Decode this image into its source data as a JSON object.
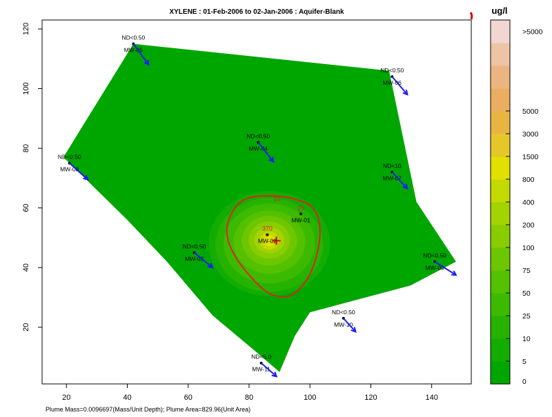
{
  "chart_data": {
    "type": "heatmap",
    "title": "XYLENE  : 01-Feb-2006 to 02-Jan-2006 : Aquifer-Blank",
    "x_ticks": [
      "20",
      "40",
      "60",
      "80",
      "100",
      "120",
      "140"
    ],
    "y_ticks": [
      "20",
      "40",
      "60",
      "80",
      "100",
      "120"
    ],
    "xlim": [
      12,
      153
    ],
    "ylim": [
      1,
      123
    ],
    "plume_boundary": [
      [
        42,
        115
      ],
      [
        126,
        106
      ],
      [
        135,
        62
      ],
      [
        148,
        42
      ],
      [
        133,
        34
      ],
      [
        100,
        25
      ],
      [
        95,
        17
      ],
      [
        90,
        5
      ],
      [
        82,
        12
      ],
      [
        68,
        24
      ],
      [
        53,
        42
      ],
      [
        40,
        56
      ],
      [
        19,
        77
      ]
    ],
    "concentration_center": [
      88,
      49
    ],
    "contour": {
      "label": "10",
      "value": 10
    },
    "wells": [
      {
        "name": "MW-05",
        "x": 42,
        "y": 115,
        "result": "ND<0.50",
        "dx": 5,
        "dy": -7
      },
      {
        "name": "MW-06",
        "x": 127,
        "y": 104,
        "result": "ND<0.50",
        "dx": 5,
        "dy": -6
      },
      {
        "name": "MW-04",
        "x": 83,
        "y": 82,
        "result": "ND<0.50",
        "dx": 5,
        "dy": -6.5
      },
      {
        "name": "MW-08",
        "x": 21,
        "y": 75,
        "result": "ND<0.50",
        "dx": 6,
        "dy": -5.5
      },
      {
        "name": "MW-07",
        "x": 127,
        "y": 72,
        "result": "ND<10",
        "dx": 5,
        "dy": -5.5
      },
      {
        "name": "MW-01",
        "x": 97,
        "y": 58,
        "result": "25",
        "dx": 0,
        "dy": 0
      },
      {
        "name": "MW-02",
        "x": 86,
        "y": 51,
        "result": "370",
        "dx": 0,
        "dy": 0
      },
      {
        "name": "MW-03",
        "x": 62,
        "y": 45,
        "result": "ND<0.50",
        "dx": 6,
        "dy": -5
      },
      {
        "name": "MW-09",
        "x": 141,
        "y": 42,
        "result": "ND<0.50",
        "dx": 7,
        "dy": -4.5
      },
      {
        "name": "MW-10",
        "x": 111,
        "y": 23,
        "result": "ND<0.50",
        "dx": 4,
        "dy": -4.5
      },
      {
        "name": "MW-11",
        "x": 84,
        "y": 8,
        "result": "ND<5.0",
        "dx": 5,
        "dy": -4.5
      }
    ]
  },
  "legend": {
    "title": "ug/l",
    "levels": [
      "0",
      "5",
      "10",
      "25",
      "50",
      "75",
      "100",
      "200",
      "400",
      "800",
      "1500",
      "3000",
      "5000",
      ">5000"
    ],
    "colors": [
      "#00a600",
      "#12ad00",
      "#26b300",
      "#3cba00",
      "#53c000",
      "#6cc600",
      "#87cd00",
      "#a3d300",
      "#c2da00",
      "#e1e000",
      "#e6c72a",
      "#e8b543",
      "#eaad61",
      "#ecb480",
      "#eec4a6",
      "#f1d6d2"
    ]
  },
  "footer": "Plume Mass=0.0096697(Mass/Unit Depth);  Plume Area=829.96(Unit Area)"
}
